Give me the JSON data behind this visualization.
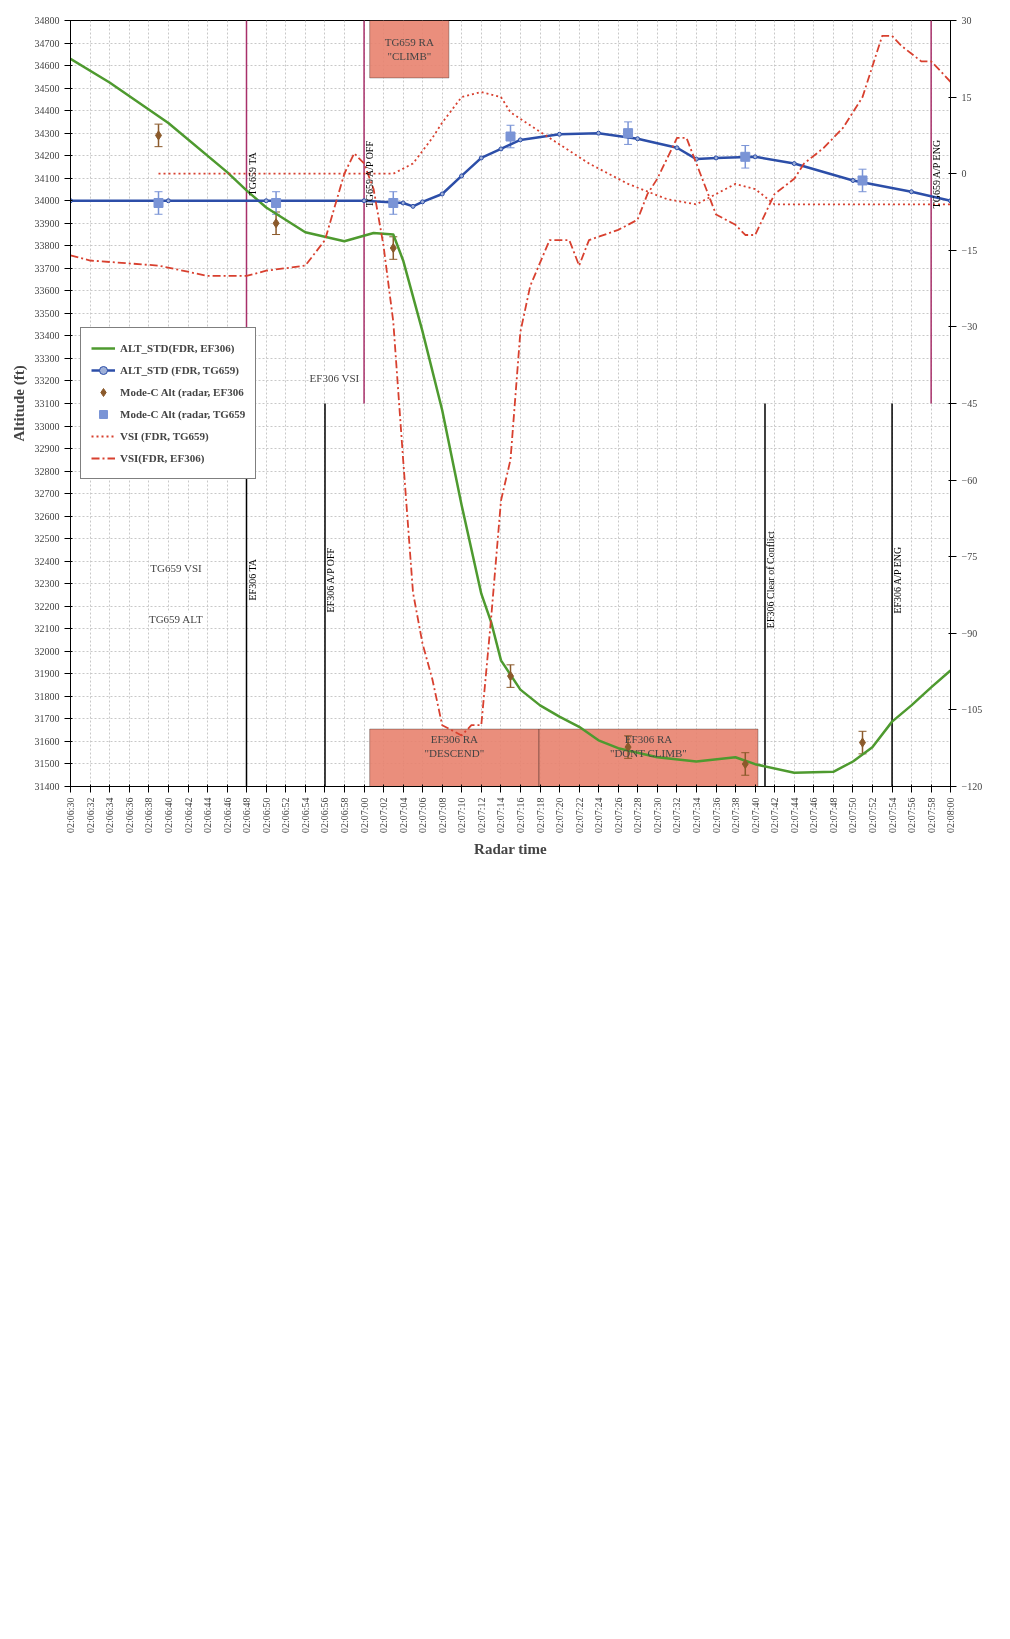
{
  "chart_data": {
    "type": "line",
    "xlabel": "Radar time",
    "ylabel": "Altitude (ft)",
    "xlim": [
      2.10833,
      2.13333
    ],
    "xticks": [
      {
        "value": 2.10833,
        "label": "02:06:30"
      },
      {
        "value": 2.10889,
        "label": "02:06:32"
      },
      {
        "value": 2.10944,
        "label": "02:06:34"
      },
      {
        "value": 2.11,
        "label": "02:06:36"
      },
      {
        "value": 2.11056,
        "label": "02:06:38"
      },
      {
        "value": 2.11111,
        "label": "02:06:40"
      },
      {
        "value": 2.11167,
        "label": "02:06:42"
      },
      {
        "value": 2.11222,
        "label": "02:06:44"
      },
      {
        "value": 2.11278,
        "label": "02:06:46"
      },
      {
        "value": 2.11333,
        "label": "02:06:48"
      },
      {
        "value": 2.11389,
        "label": "02:06:50"
      },
      {
        "value": 2.11444,
        "label": "02:06:52"
      },
      {
        "value": 2.115,
        "label": "02:06:54"
      },
      {
        "value": 2.11556,
        "label": "02:06:56"
      },
      {
        "value": 2.11611,
        "label": "02:06:58"
      },
      {
        "value": 2.11667,
        "label": "02:07:00"
      },
      {
        "value": 2.11722,
        "label": "02:07:02"
      },
      {
        "value": 2.11778,
        "label": "02:07:04"
      },
      {
        "value": 2.11833,
        "label": "02:07:06"
      },
      {
        "value": 2.11889,
        "label": "02:07:08"
      },
      {
        "value": 2.11944,
        "label": "02:07:10"
      },
      {
        "value": 2.12,
        "label": "02:07:12"
      },
      {
        "value": 2.12056,
        "label": "02:07:14"
      },
      {
        "value": 2.12111,
        "label": "02:07:16"
      },
      {
        "value": 2.12167,
        "label": "02:07:18"
      },
      {
        "value": 2.12222,
        "label": "02:07:20"
      },
      {
        "value": 2.12278,
        "label": "02:07:22"
      },
      {
        "value": 2.12333,
        "label": "02:07:24"
      },
      {
        "value": 2.12389,
        "label": "02:07:26"
      },
      {
        "value": 2.12444,
        "label": "02:07:28"
      },
      {
        "value": 2.125,
        "label": "02:07:30"
      },
      {
        "value": 2.12556,
        "label": "02:07:32"
      },
      {
        "value": 2.12611,
        "label": "02:07:34"
      },
      {
        "value": 2.12667,
        "label": "02:07:36"
      },
      {
        "value": 2.12722,
        "label": "02:07:38"
      },
      {
        "value": 2.12778,
        "label": "02:07:40"
      },
      {
        "value": 2.12833,
        "label": "02:07:42"
      },
      {
        "value": 2.12889,
        "label": "02:07:44"
      },
      {
        "value": 2.12944,
        "label": "02:07:46"
      },
      {
        "value": 2.13,
        "label": "02:07:48"
      },
      {
        "value": 2.13056,
        "label": "02:07:50"
      },
      {
        "value": 2.13111,
        "label": "02:07:52"
      },
      {
        "value": 2.13167,
        "label": "02:07:54"
      },
      {
        "value": 2.13222,
        "label": "02:07:56"
      },
      {
        "value": 2.13278,
        "label": "02:07:58"
      },
      {
        "value": 2.13333,
        "label": "02:08:00"
      }
    ],
    "ylim": [
      31400,
      34800
    ],
    "yticks": [
      31400,
      31500,
      31600,
      31700,
      31800,
      31900,
      32000,
      32100,
      32200,
      32300,
      32400,
      32500,
      32600,
      32700,
      32800,
      32900,
      33000,
      33100,
      33200,
      33300,
      33400,
      33500,
      33600,
      33700,
      33800,
      33900,
      34000,
      34100,
      34200,
      34300,
      34400,
      34500,
      34600,
      34700,
      34800
    ],
    "y2lim": [
      -120,
      30
    ],
    "y2ticks": [
      30,
      15,
      0,
      -15,
      -30,
      -45,
      -60,
      -75,
      -90,
      -105,
      -120
    ],
    "grid": true,
    "legend": "left",
    "series": [
      {
        "name": "ALT_STD(FDR, EF306)",
        "color": "#4e9a2f",
        "marker": "none",
        "line_style": "solid",
        "x": [
          2.10833,
          2.10944,
          2.11111,
          2.11278,
          2.11333,
          2.11389,
          2.115,
          2.11611,
          2.11694,
          2.1175,
          2.11778,
          2.11833,
          2.11889,
          2.11944,
          2.12,
          2.12028,
          2.12056,
          2.12111,
          2.12167,
          2.12222,
          2.12278,
          2.12333,
          2.12389,
          2.125,
          2.12611,
          2.12722,
          2.12778,
          2.12889,
          2.13,
          2.13056,
          2.13111,
          2.13167,
          2.13222,
          2.13278,
          2.13333
        ],
        "values": [
          34630,
          34525,
          34345,
          34127,
          34046,
          33970,
          33860,
          33820,
          33857,
          33850,
          33735,
          33420,
          33070,
          32650,
          32256,
          32130,
          31960,
          31830,
          31760,
          31710,
          31665,
          31605,
          31570,
          31530,
          31511,
          31530,
          31499,
          31461,
          31465,
          31511,
          31574,
          31688,
          31760,
          31840,
          31915
        ]
      },
      {
        "name": "ALT_STD (FDR, TG659)",
        "color": "#2c4ea8",
        "marker": "circle",
        "line_style": "solid",
        "x": [
          2.10833,
          2.11111,
          2.11389,
          2.11667,
          2.11778,
          2.11806,
          2.11833,
          2.11889,
          2.11944,
          2.12,
          2.12056,
          2.12111,
          2.12222,
          2.12333,
          2.12444,
          2.12556,
          2.12611,
          2.12667,
          2.12778,
          2.12889,
          2.13056,
          2.13222,
          2.13333
        ],
        "values": [
          34000,
          34000,
          34000,
          34000,
          33990,
          33975,
          33995,
          34030,
          34110,
          34190,
          34230,
          34270,
          34295,
          34300,
          34275,
          34235,
          34185,
          34190,
          34195,
          34165,
          34090,
          34040,
          34000
        ]
      },
      {
        "name": "Mode-C Alt (radar, EF306",
        "type": "scatter",
        "color": "#8b5a2b",
        "marker": "diamond",
        "x": [
          2.11083,
          2.11417,
          2.1175,
          2.12083,
          2.12417,
          2.1275,
          2.13083
        ],
        "values": [
          34290,
          33900,
          33790,
          31890,
          31575,
          31500,
          31595
        ],
        "errors": [
          50,
          50,
          50,
          50,
          50,
          50,
          50
        ]
      },
      {
        "name": "Mode-C Alt (radar, TG659",
        "type": "scatter",
        "color": "#7a94d6",
        "marker": "square",
        "x": [
          2.11083,
          2.11417,
          2.1175,
          2.12083,
          2.12417,
          2.1275,
          2.13083
        ],
        "values": [
          33990,
          33990,
          33990,
          34285,
          34300,
          34195,
          34090
        ],
        "errors": [
          50,
          50,
          50,
          50,
          50,
          50,
          50
        ]
      },
      {
        "name": "VSI (FDR, TG659)",
        "color": "#d8402f",
        "marker": "none",
        "line_style": "dotted",
        "axis": "y2",
        "x": [
          2.11083,
          2.11389,
          2.1175,
          2.11806,
          2.11861,
          2.11889,
          2.11944,
          2.12,
          2.12056,
          2.12083,
          2.12194,
          2.12306,
          2.12417,
          2.12528,
          2.12611,
          2.12722,
          2.12778,
          2.12833,
          2.12917,
          2.13333
        ],
        "values": [
          0,
          0,
          0,
          2,
          7,
          10,
          15,
          16,
          15,
          12,
          7,
          2,
          -2,
          -5,
          -6,
          -2,
          -3,
          -6,
          -6,
          -6
        ]
      },
      {
        "name": "VSI(FDR, EF306)",
        "color": "#d8402f",
        "marker": "none",
        "line_style": "dashed",
        "axis": "y2",
        "x": [
          2.10833,
          2.10889,
          2.11083,
          2.11222,
          2.11333,
          2.11389,
          2.115,
          2.11556,
          2.11611,
          2.11639,
          2.11667,
          2.11694,
          2.11722,
          2.1175,
          2.11778,
          2.11806,
          2.11833,
          2.11861,
          2.11889,
          2.11944,
          2.11972,
          2.12,
          2.12028,
          2.12056,
          2.12083,
          2.12111,
          2.12139,
          2.12194,
          2.1225,
          2.12278,
          2.12306,
          2.12389,
          2.12417,
          2.12444,
          2.12472,
          2.125,
          2.12556,
          2.12583,
          2.12611,
          2.12639,
          2.12667,
          2.12722,
          2.1275,
          2.12778,
          2.12833,
          2.12889,
          2.12917,
          2.12972,
          2.13028,
          2.13083,
          2.13111,
          2.13139,
          2.13167,
          2.13194,
          2.1325,
          2.13278,
          2.13306,
          2.13333
        ],
        "values": [
          -16,
          -17,
          -18,
          -20,
          -20,
          -19,
          -18,
          -13,
          0,
          4,
          2,
          -3,
          -14,
          -29,
          -56,
          -82,
          -92,
          -99,
          -108,
          -110,
          -108,
          -108,
          -87,
          -64,
          -56,
          -31,
          -22,
          -13,
          -13,
          -18,
          -13,
          -11,
          -10,
          -9,
          -4,
          -1,
          7,
          7,
          2,
          -3,
          -8,
          -10,
          -12,
          -12,
          -4,
          -1,
          2,
          5,
          9,
          15,
          21,
          27,
          27,
          25,
          22,
          22,
          20,
          18
        ]
      }
    ],
    "bands": [
      {
        "axis": "x",
        "from": 2.11683,
        "to": 2.12164,
        "label": "EF306 RA\n\"DESCEND\"",
        "color": "#e8826e"
      },
      {
        "axis": "x",
        "from": 2.11683,
        "to": 2.11908,
        "label": "TG659 RA\n\"CLIMB\"",
        "color": "#e8826e"
      },
      {
        "axis": "x",
        "from": 2.12164,
        "to": 2.12786,
        "label": "EF306 RA\n\"DONT CLIMB\"",
        "color": "#e8826e"
      }
    ],
    "ref_lines": [
      {
        "axis": "x",
        "value": 2.11333,
        "label": "EF306 TA",
        "color": "#000000"
      },
      {
        "axis": "x",
        "value": 2.11333,
        "label": "TG659 TA",
        "color": "#a8306a"
      },
      {
        "axis": "x",
        "value": 2.11556,
        "label": "EF306 A/P OFF",
        "color": "#000000"
      },
      {
        "axis": "x",
        "value": 2.11667,
        "label": "TG659 A/P OFF",
        "color": "#a8306a"
      },
      {
        "axis": "x",
        "value": 2.12806,
        "label": "EF306 Clear of Conflict",
        "color": "#000000"
      },
      {
        "axis": "x",
        "value": 2.13278,
        "label": "TG659 A/P ENG",
        "color": "#a8306a"
      },
      {
        "axis": "x",
        "value": 2.13167,
        "label": "EF306 A/P ENG",
        "color": "#000000"
      }
    ],
    "annotations": [
      "TG659 VSI",
      "TG659 ALT",
      "EF306 VSI"
    ]
  }
}
